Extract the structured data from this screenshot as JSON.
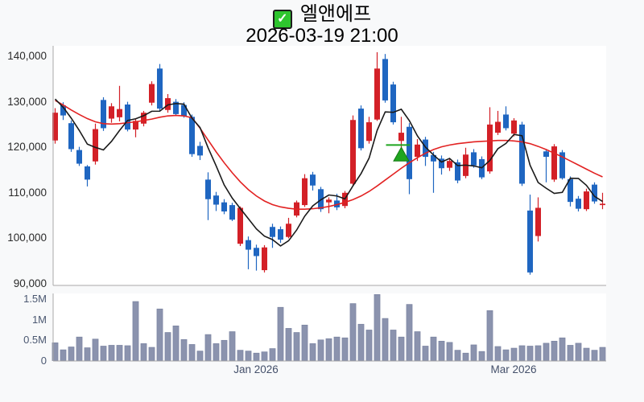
{
  "title": {
    "symbol_name": "엘앤에프",
    "checkbox_checked": true,
    "check_glyph": "✓",
    "datetime": "2026-03-19 21:00"
  },
  "colors": {
    "background": "#f8f9fa",
    "panel_background": "#ffffff",
    "axis_line": "#a8a8a8",
    "up_candle": "#d32027",
    "down_candle": "#1f66c1",
    "ma_short_line": "#1a1a1a",
    "ma_long_line": "#e22222",
    "volume_bar_fill": "#8b93ae",
    "volume_bar_stroke": "#7d86a3",
    "marker_green": "#1fa51f",
    "checkbox_green": "#2ec52e"
  },
  "chart_data": {
    "type": "candlestick",
    "title": "엘앤에프",
    "subtitle": "2026-03-19 21:00",
    "price_axis": {
      "range": [
        90000,
        140000
      ],
      "ticks": [
        {
          "value": 140000,
          "label": "140,000"
        },
        {
          "value": 130000,
          "label": "130,000"
        },
        {
          "value": 120000,
          "label": "120,000"
        },
        {
          "value": 110000,
          "label": "110,000"
        },
        {
          "value": 100000,
          "label": "100,000"
        },
        {
          "value": 90000,
          "label": "90,000"
        }
      ]
    },
    "volume_axis": {
      "range": [
        0,
        1500000
      ],
      "ticks": [
        {
          "value": 1500000,
          "label": "1.5M"
        },
        {
          "value": 1000000,
          "label": "1M"
        },
        {
          "value": 500000,
          "label": "0.5M"
        },
        {
          "value": 0,
          "label": "0"
        }
      ]
    },
    "x_axis": {
      "labels": [
        {
          "text": "Jan 2026",
          "candle_index": 25
        },
        {
          "text": "Mar 2026",
          "candle_index": 57
        }
      ]
    },
    "candles_format": [
      "open",
      "high",
      "low",
      "close",
      "volume"
    ],
    "candles": [
      [
        121500,
        128600,
        120800,
        127600,
        430000
      ],
      [
        129200,
        129900,
        126000,
        127000,
        260000
      ],
      [
        125300,
        125900,
        119000,
        119600,
        330000
      ],
      [
        119400,
        120100,
        115900,
        116400,
        570000
      ],
      [
        115800,
        116100,
        111400,
        112900,
        310000
      ],
      [
        116900,
        125200,
        116200,
        124000,
        520000
      ],
      [
        130400,
        131000,
        123600,
        124200,
        350000
      ],
      [
        126300,
        129700,
        125400,
        129000,
        370000
      ],
      [
        126600,
        133500,
        125700,
        128400,
        370000
      ],
      [
        129400,
        130000,
        123500,
        123900,
        360000
      ],
      [
        123900,
        126300,
        122200,
        125800,
        1430000
      ],
      [
        125200,
        128000,
        124600,
        127600,
        410000
      ],
      [
        129800,
        134500,
        129200,
        133900,
        320000
      ],
      [
        137300,
        138300,
        128000,
        128500,
        1250000
      ],
      [
        128200,
        131700,
        127600,
        130800,
        680000
      ],
      [
        130000,
        130600,
        127000,
        127300,
        840000
      ],
      [
        129300,
        129900,
        126500,
        126900,
        510000
      ],
      [
        126700,
        127200,
        117900,
        118500,
        390000
      ],
      [
        120300,
        121200,
        117200,
        118200,
        230000
      ],
      [
        112900,
        114500,
        104000,
        108600,
        630000
      ],
      [
        109400,
        110200,
        106000,
        107400,
        410000
      ],
      [
        107900,
        108600,
        105300,
        105900,
        490000
      ],
      [
        107300,
        107800,
        103800,
        104100,
        700000
      ],
      [
        98800,
        107000,
        98300,
        106700,
        250000
      ],
      [
        99600,
        100400,
        93200,
        97500,
        230000
      ],
      [
        97900,
        98600,
        92900,
        96100,
        180000
      ],
      [
        93000,
        98500,
        92500,
        98000,
        210000
      ],
      [
        102500,
        103200,
        97900,
        100300,
        290000
      ],
      [
        102000,
        102600,
        99000,
        99700,
        1290000
      ],
      [
        100300,
        104500,
        100000,
        103200,
        780000
      ],
      [
        105000,
        108300,
        104600,
        107900,
        680000
      ],
      [
        107300,
        114100,
        106900,
        113200,
        860000
      ],
      [
        114000,
        114600,
        110500,
        111600,
        410000
      ],
      [
        110800,
        111300,
        105800,
        106400,
        500000
      ],
      [
        107900,
        109000,
        105500,
        108500,
        530000
      ],
      [
        108300,
        109800,
        106200,
        106800,
        570000
      ],
      [
        107100,
        110400,
        106600,
        110000,
        550000
      ],
      [
        112000,
        127000,
        111500,
        126000,
        1380000
      ],
      [
        128500,
        129200,
        119300,
        119800,
        880000
      ],
      [
        121400,
        126700,
        120800,
        125500,
        740000
      ],
      [
        126100,
        140900,
        125800,
        137300,
        1600000
      ],
      [
        139400,
        140500,
        129800,
        130300,
        1020000
      ],
      [
        133800,
        134400,
        125000,
        125500,
        740000
      ],
      [
        121400,
        126700,
        119200,
        123200,
        570000
      ],
      [
        124500,
        125300,
        109700,
        113000,
        1360000
      ],
      [
        117900,
        121800,
        117000,
        120600,
        700000
      ],
      [
        121700,
        122300,
        115900,
        117900,
        350000
      ],
      [
        118300,
        119000,
        110000,
        116900,
        570000
      ],
      [
        117500,
        118200,
        114000,
        115400,
        470000
      ],
      [
        115500,
        117400,
        114800,
        117000,
        440000
      ],
      [
        116700,
        117300,
        112100,
        112700,
        250000
      ],
      [
        113700,
        119900,
        113200,
        118400,
        180000
      ],
      [
        118900,
        119600,
        115500,
        116000,
        380000
      ],
      [
        117400,
        118000,
        113000,
        113400,
        220000
      ],
      [
        114700,
        128800,
        114200,
        125000,
        1210000
      ],
      [
        123200,
        128000,
        122700,
        125600,
        340000
      ],
      [
        127200,
        129000,
        123700,
        124200,
        260000
      ],
      [
        123000,
        126400,
        122400,
        125900,
        300000
      ],
      [
        125000,
        125600,
        111500,
        112000,
        360000
      ],
      [
        106100,
        109600,
        92000,
        92500,
        350000
      ],
      [
        100500,
        109000,
        99300,
        106700,
        360000
      ],
      [
        119100,
        119600,
        112300,
        117900,
        420000
      ],
      [
        112900,
        120700,
        112400,
        120200,
        470000
      ],
      [
        118900,
        119400,
        112900,
        113200,
        550000
      ],
      [
        113000,
        113600,
        107000,
        108000,
        370000
      ],
      [
        108700,
        109300,
        105900,
        106500,
        420000
      ],
      [
        106400,
        110900,
        106000,
        110300,
        300000
      ],
      [
        111800,
        112300,
        107600,
        108100,
        250000
      ],
      [
        107300,
        110000,
        106400,
        107600,
        320000
      ]
    ],
    "ma_short": {
      "period": 5,
      "color": "#1a1a1a",
      "lead_values": [
        130600,
        128800,
        126400,
        123700
      ]
    },
    "ma_long": {
      "color": "#e22222",
      "values": [
        130300,
        129300,
        128200,
        127200,
        126300,
        125600,
        125200,
        125100,
        125200,
        125400,
        125600,
        125900,
        126200,
        126600,
        126900,
        127000,
        126900,
        126500,
        124200,
        121600,
        119000,
        116600,
        114400,
        112400,
        110700,
        109300,
        108200,
        107400,
        106900,
        106600,
        106400,
        106400,
        106500,
        106700,
        107000,
        107400,
        107900,
        108500,
        109300,
        110300,
        111500,
        112800,
        114100,
        115400,
        116600,
        117700,
        118700,
        119500,
        120100,
        120500,
        120800,
        121000,
        121200,
        121300,
        121400,
        121500,
        121500,
        121400,
        121200,
        120800,
        120200,
        119500,
        118700,
        117900,
        117000,
        116100,
        115200,
        114300,
        113500
      ]
    },
    "marker": {
      "type": "triangle-up",
      "color": "#1fa51f",
      "candle_index": 43,
      "price": 120000,
      "line_price": 120500
    }
  }
}
